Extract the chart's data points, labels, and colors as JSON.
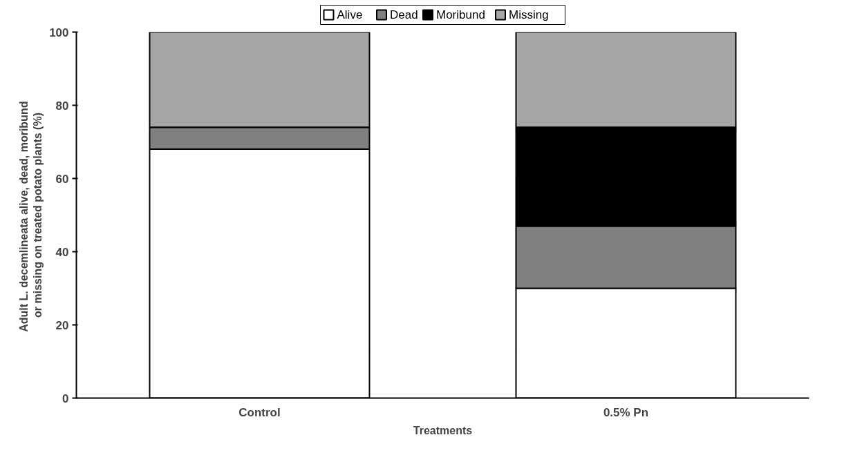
{
  "chart_data": {
    "type": "bar",
    "stacked": true,
    "categories": [
      "Control",
      "0.5% Pn"
    ],
    "series": [
      {
        "name": "Alive",
        "color": "#ffffff",
        "values": [
          68,
          30
        ]
      },
      {
        "name": "Dead",
        "color": "#808080",
        "values": [
          6,
          17
        ]
      },
      {
        "name": "Moribund",
        "color": "#000000",
        "values": [
          0,
          27
        ]
      },
      {
        "name": "Missing",
        "color": "#a6a6a6",
        "values": [
          26,
          26
        ]
      }
    ],
    "xlabel": "Treatments",
    "ylabel": "Adult L. decemlineata  alive, dead, moribund\nor missing on treated potato plants (%)",
    "ylim": [
      0,
      100
    ],
    "yticks": [
      0,
      20,
      40,
      60,
      80,
      100
    ],
    "grid": false,
    "legend": "top"
  }
}
